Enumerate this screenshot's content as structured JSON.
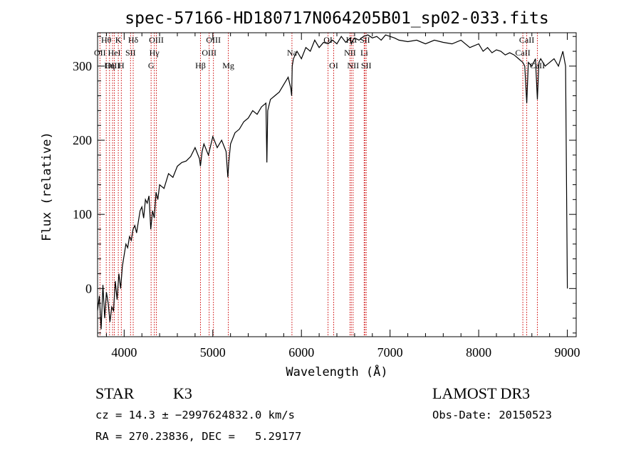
{
  "chart_data": {
    "type": "line",
    "title": "spec-57166-HD180717N064205B01_sp02-033.fits",
    "xlabel": "Wavelength (Å)",
    "ylabel": "Flux (relative)",
    "xlim": [
      3700,
      9100
    ],
    "ylim": [
      -65,
      345
    ],
    "x_ticks": [
      4000,
      5000,
      6000,
      7000,
      8000,
      9000
    ],
    "y_ticks": [
      0,
      100,
      200,
      300
    ],
    "series": [
      {
        "name": "flux",
        "x": [
          3700,
          3720,
          3740,
          3760,
          3780,
          3800,
          3820,
          3840,
          3860,
          3880,
          3900,
          3920,
          3940,
          3960,
          3980,
          4000,
          4020,
          4040,
          4060,
          4080,
          4100,
          4120,
          4140,
          4160,
          4180,
          4200,
          4220,
          4240,
          4260,
          4280,
          4300,
          4320,
          4340,
          4360,
          4380,
          4400,
          4450,
          4500,
          4550,
          4600,
          4650,
          4700,
          4750,
          4800,
          4850,
          4860,
          4880,
          4900,
          4950,
          5000,
          5050,
          5100,
          5150,
          5170,
          5180,
          5200,
          5250,
          5300,
          5350,
          5400,
          5450,
          5500,
          5550,
          5600,
          5610,
          5620,
          5650,
          5700,
          5750,
          5800,
          5850,
          5880,
          5890,
          5896,
          5910,
          5950,
          6000,
          6050,
          6100,
          6150,
          6200,
          6250,
          6300,
          6350,
          6400,
          6450,
          6500,
          6550,
          6563,
          6580,
          6600,
          6650,
          6700,
          6750,
          6800,
          6850,
          6900,
          6950,
          7000,
          7050,
          7100,
          7200,
          7300,
          7400,
          7500,
          7600,
          7700,
          7800,
          7900,
          8000,
          8050,
          8100,
          8150,
          8200,
          8250,
          8300,
          8350,
          8400,
          8450,
          8498,
          8520,
          8542,
          8560,
          8600,
          8640,
          8662,
          8680,
          8700,
          8750,
          8800,
          8850,
          8900,
          8950,
          8980,
          9000
        ],
        "values": [
          -30,
          -10,
          -55,
          5,
          -40,
          -5,
          -20,
          -45,
          -25,
          -30,
          10,
          -15,
          20,
          0,
          30,
          45,
          60,
          55,
          70,
          65,
          80,
          85,
          75,
          90,
          105,
          110,
          95,
          120,
          115,
          125,
          80,
          105,
          95,
          130,
          120,
          140,
          135,
          155,
          150,
          165,
          170,
          172,
          178,
          190,
          175,
          165,
          185,
          195,
          180,
          205,
          190,
          200,
          185,
          150,
          170,
          195,
          210,
          215,
          225,
          230,
          240,
          235,
          245,
          250,
          170,
          240,
          255,
          260,
          265,
          275,
          285,
          270,
          260,
          300,
          310,
          320,
          310,
          325,
          320,
          335,
          325,
          332,
          330,
          335,
          330,
          340,
          332,
          338,
          330,
          335,
          338,
          335,
          340,
          342,
          338,
          340,
          335,
          342,
          340,
          338,
          335,
          333,
          335,
          330,
          335,
          332,
          330,
          335,
          325,
          330,
          320,
          325,
          318,
          322,
          320,
          315,
          318,
          315,
          310,
          305,
          300,
          250,
          305,
          300,
          310,
          255,
          305,
          310,
          300,
          305,
          310,
          300,
          320,
          300,
          0
        ]
      }
    ],
    "spectral_lines": [
      {
        "label": "Hθ",
        "wavelength": 3798,
        "row": 0
      },
      {
        "label": "OII",
        "wavelength": 3727,
        "row": 1
      },
      {
        "label": "Hη",
        "wavelength": 3835,
        "row": 2
      },
      {
        "label": "OIII",
        "wavelength": 3869,
        "row": 2
      },
      {
        "label": "HeI",
        "wavelength": 3889,
        "row": 1
      },
      {
        "label": "K",
        "wavelength": 3934,
        "row": 0
      },
      {
        "label": "H",
        "wavelength": 3968,
        "row": 2
      },
      {
        "label": "SII",
        "wavelength": 4072,
        "row": 1
      },
      {
        "label": "Hδ",
        "wavelength": 4102,
        "row": 0
      },
      {
        "label": "G",
        "wavelength": 4304,
        "row": 2
      },
      {
        "label": "Hγ",
        "wavelength": 4340,
        "row": 1
      },
      {
        "label": "OIII",
        "wavelength": 4363,
        "row": 0
      },
      {
        "label": "Hβ",
        "wavelength": 4861,
        "row": 2
      },
      {
        "label": "OIII",
        "wavelength": 4959,
        "row": 1
      },
      {
        "label": "OIII",
        "wavelength": 5007,
        "row": 0
      },
      {
        "label": "Mg",
        "wavelength": 5175,
        "row": 2
      },
      {
        "label": "Na",
        "wavelength": 5893,
        "row": 1
      },
      {
        "label": "OI",
        "wavelength": 6300,
        "row": 0
      },
      {
        "label": "OI",
        "wavelength": 6364,
        "row": 2
      },
      {
        "label": "NII",
        "wavelength": 6548,
        "row": 1
      },
      {
        "label": "Hα",
        "wavelength": 6563,
        "row": 0
      },
      {
        "label": "NII",
        "wavelength": 6583,
        "row": 2
      },
      {
        "label": "Li",
        "wavelength": 6708,
        "row": 1
      },
      {
        "label": "SII",
        "wavelength": 6716,
        "row": 0
      },
      {
        "label": "SII",
        "wavelength": 6731,
        "row": 2
      },
      {
        "label": "CaII",
        "wavelength": 8498,
        "row": 1
      },
      {
        "label": "CaII",
        "wavelength": 8542,
        "row": 0
      },
      {
        "label": "CaII",
        "wavelength": 8662,
        "row": 2
      }
    ]
  },
  "info": {
    "object_class": "STAR",
    "subclass": "K3",
    "survey": "LAMOST DR3",
    "redshift_line": "cz = 14.3 ± −2997624832.0 km/s",
    "obs_date": "Obs-Date: 20150523",
    "coords_line": "RA = 270.23836, DEC =   5.29177"
  },
  "colors": {
    "line": "#000000",
    "marker": "#cc0000",
    "background": "#ffffff"
  }
}
